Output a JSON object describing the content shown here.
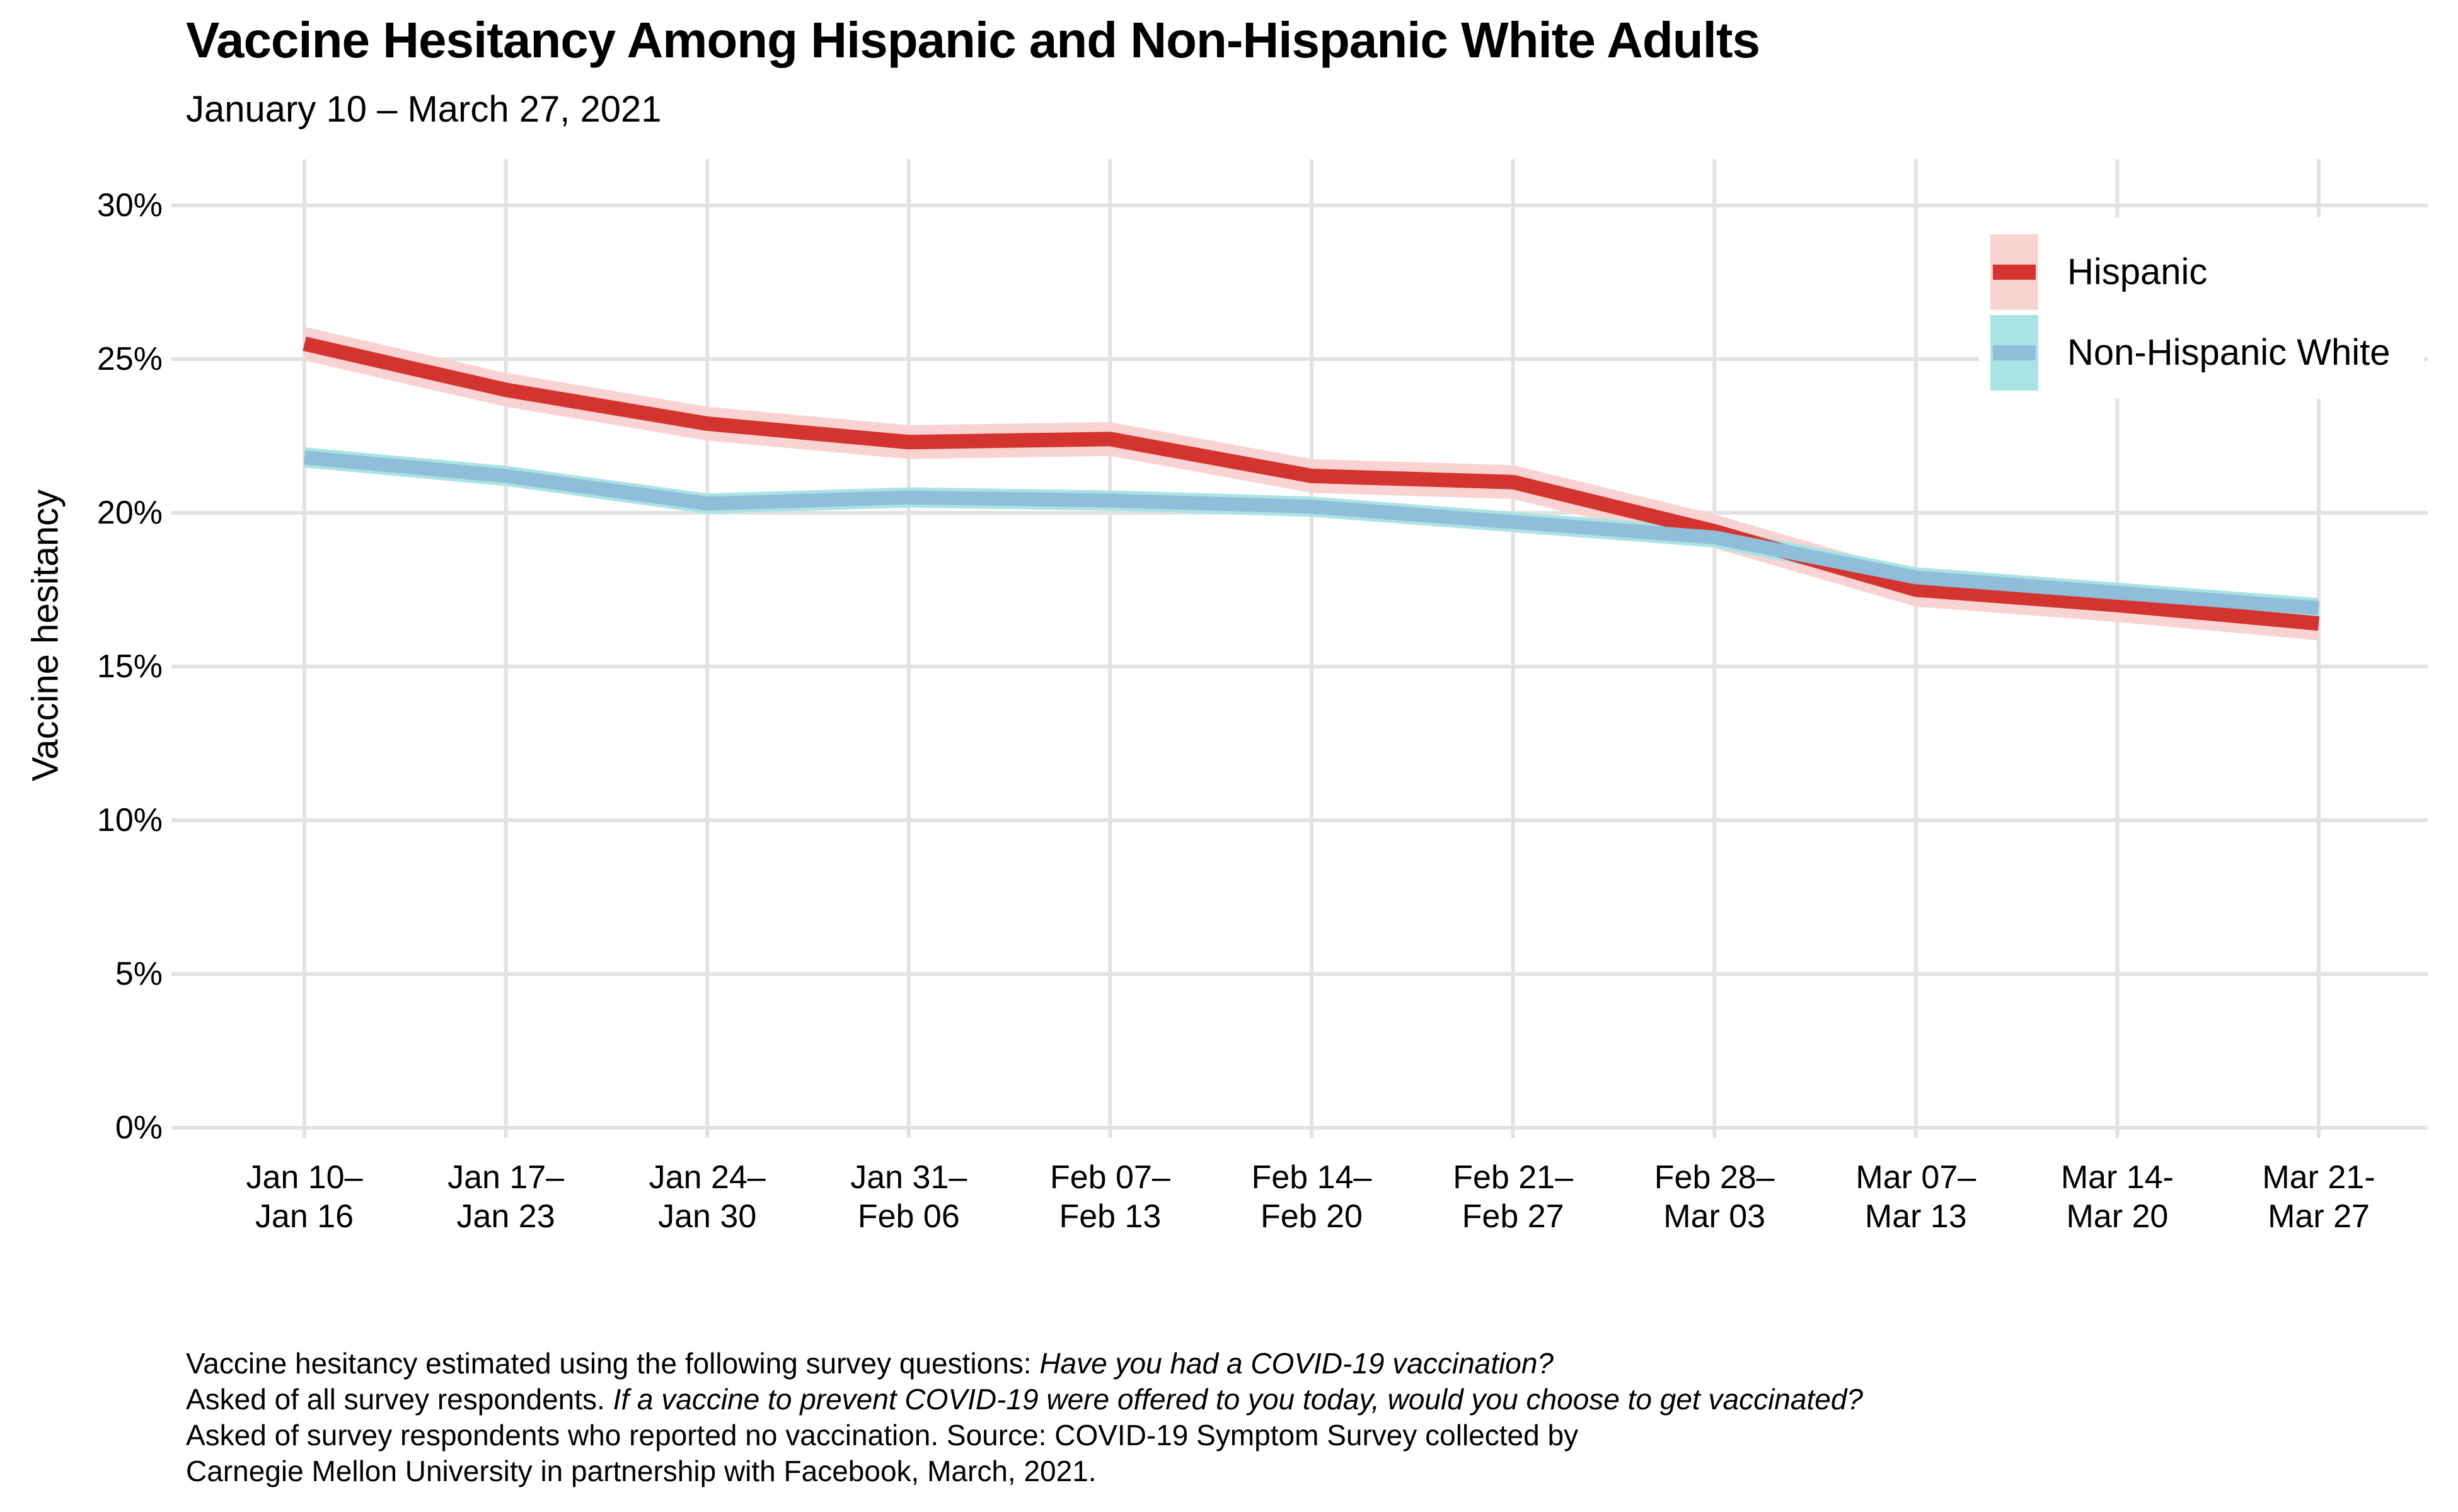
{
  "chart_data": {
    "type": "line",
    "title": "Vaccine Hesitancy Among Hispanic and Non-Hispanic White Adults",
    "subtitle": "January 10 – March 27, 2021",
    "xlabel": "",
    "ylabel": "Vaccine hesitancy",
    "categories": [
      [
        "Jan 10–",
        "Jan 16"
      ],
      [
        "Jan 17–",
        "Jan 23"
      ],
      [
        "Jan 24–",
        "Jan 30"
      ],
      [
        "Jan 31–",
        "Feb 06"
      ],
      [
        "Feb 07–",
        "Feb 13"
      ],
      [
        "Feb 14–",
        "Feb 20"
      ],
      [
        "Feb 21–",
        "Feb 27"
      ],
      [
        "Feb 28–",
        "Mar 03"
      ],
      [
        "Mar 07–",
        "Mar 13"
      ],
      [
        "Mar 14-",
        "Mar 20"
      ],
      [
        "Mar 21-",
        "Mar 27"
      ]
    ],
    "y_ticks": [
      {
        "value": 0,
        "label": "0%"
      },
      {
        "value": 5,
        "label": "5%"
      },
      {
        "value": 10,
        "label": "10%"
      },
      {
        "value": 15,
        "label": "15%"
      },
      {
        "value": 20,
        "label": "20%"
      },
      {
        "value": 25,
        "label": "25%"
      },
      {
        "value": 30,
        "label": "30%"
      }
    ],
    "ylim": [
      0,
      31.5
    ],
    "grid": true,
    "legend_position": "top-right",
    "series": [
      {
        "name": "Hispanic",
        "color": "#d3342f",
        "band_color": "#f9d3d2",
        "ci_half_width": 0.55,
        "values": [
          25.5,
          24.0,
          22.9,
          22.3,
          22.4,
          21.2,
          21.0,
          19.4,
          17.5,
          17.0,
          16.4
        ]
      },
      {
        "name": "Non-Hispanic White",
        "color": "#90bdd9",
        "band_color": "#aae3e4",
        "ci_half_width": 0.33,
        "values": [
          21.8,
          21.2,
          20.3,
          20.5,
          20.4,
          20.2,
          19.7,
          19.2,
          17.9,
          17.4,
          16.9
        ]
      }
    ],
    "gridline_color": "#e2e2e2"
  },
  "caption": {
    "lines": [
      [
        {
          "t": "Vaccine hesitancy estimated using the following survey questions: ",
          "i": false
        },
        {
          "t": "Have you had a COVID-19 vaccination?",
          "i": true
        }
      ],
      [
        {
          "t": "Asked of all survey respondents. ",
          "i": false
        },
        {
          "t": "If a vaccine to prevent COVID-19 were offered to you today, would you choose to get vaccinated?",
          "i": true
        }
      ],
      [
        {
          "t": "Asked of survey respondents who reported no vaccination. Source: COVID-19 Symptom Survey collected by",
          "i": false
        }
      ],
      [
        {
          "t": "Carnegie Mellon University in partnership with Facebook, March, 2021.",
          "i": false
        }
      ]
    ]
  }
}
